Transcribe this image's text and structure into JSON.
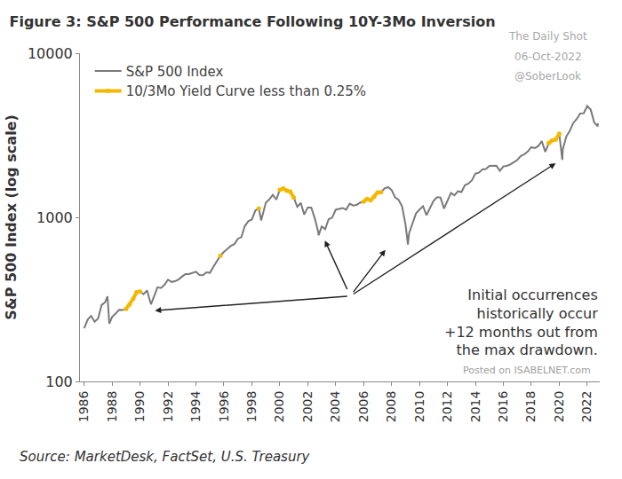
{
  "chart_data": {
    "type": "line",
    "title": "Figure 3: S&P 500 Performance Following 10Y-3Mo Inversion",
    "y_label": "S&P 500 Index (log scale)",
    "log": "y",
    "grid": false,
    "legend": "top left",
    "xlim": [
      1985.7,
      2022.9
    ],
    "xticks": [
      1986,
      1988,
      1990,
      1992,
      1994,
      1996,
      1998,
      2000,
      2002,
      2004,
      2006,
      2008,
      2010,
      2012,
      2014,
      2016,
      2018,
      2020,
      2022
    ],
    "ylim": [
      100,
      10000
    ],
    "yticks": [
      100,
      1000,
      10000
    ],
    "x": [
      1986,
      1986.25,
      1986.5,
      1986.75,
      1987,
      1987.25,
      1987.5,
      1987.67,
      1987.8,
      1988,
      1988.25,
      1988.5,
      1988.75,
      1989,
      1989.25,
      1989.5,
      1989.75,
      1990,
      1990.25,
      1990.5,
      1990.78,
      1991,
      1991.25,
      1991.5,
      1991.75,
      1992,
      1992.25,
      1992.5,
      1992.75,
      1993,
      1993.25,
      1993.5,
      1993.75,
      1994,
      1994.25,
      1994.5,
      1994.75,
      1995,
      1995.25,
      1995.5,
      1995.75,
      1996,
      1996.25,
      1996.5,
      1996.75,
      1997,
      1997.25,
      1997.5,
      1997.75,
      1998,
      1998.25,
      1998.5,
      1998.67,
      1998.75,
      1999,
      1999.25,
      1999.5,
      1999.75,
      2000,
      2000.25,
      2000.5,
      2000.75,
      2001,
      2001.25,
      2001.5,
      2001.75,
      2002,
      2002.25,
      2002.5,
      2002.75,
      2002.78,
      2003,
      2003.25,
      2003.5,
      2003.75,
      2004,
      2004.25,
      2004.5,
      2004.75,
      2005,
      2005.25,
      2005.5,
      2005.75,
      2006,
      2006.25,
      2006.5,
      2006.75,
      2007,
      2007.25,
      2007.5,
      2007.75,
      2008,
      2008.25,
      2008.5,
      2008.75,
      2009,
      2009.17,
      2009.25,
      2009.5,
      2009.75,
      2010,
      2010.25,
      2010.5,
      2010.75,
      2011,
      2011.25,
      2011.5,
      2011.75,
      2012,
      2012.25,
      2012.5,
      2012.75,
      2013,
      2013.25,
      2013.5,
      2013.75,
      2014,
      2014.25,
      2014.5,
      2014.75,
      2015,
      2015.25,
      2015.5,
      2015.75,
      2016,
      2016.25,
      2016.5,
      2016.75,
      2017,
      2017.25,
      2017.5,
      2017.75,
      2018,
      2018.25,
      2018.5,
      2018.75,
      2019,
      2019.25,
      2019.5,
      2019.75,
      2020,
      2020.22,
      2020.25,
      2020.5,
      2020.75,
      2021,
      2021.25,
      2021.5,
      2021.75,
      2022,
      2022.25,
      2022.5,
      2022.75,
      2022.76
    ],
    "series": [
      {
        "name": "S&P 500 Index",
        "color": "#7a7a7a",
        "line_style": "solid",
        "values": [
          211,
          238,
          251,
          231,
          242,
          292,
          304,
          330,
          225,
          247,
          259,
          273,
          272,
          277,
          294,
          318,
          349,
          353,
          340,
          358,
          295,
          330,
          375,
          371,
          388,
          417,
          404,
          408,
          418,
          435,
          451,
          451,
          459,
          466,
          445,
          444,
          462,
          459,
          500,
          545,
          584,
          615,
          645,
          670,
          687,
          740,
          757,
          885,
          947,
          970,
          1101,
          1133,
          957,
          1017,
          1229,
          1286,
          1372,
          1282,
          1469,
          1498,
          1454,
          1436,
          1320,
          1160,
          1224,
          1040,
          1148,
          1147,
          989,
          815,
          777,
          880,
          848,
          975,
          996,
          1112,
          1126,
          1140,
          1114,
          1212,
          1180,
          1191,
          1228,
          1248,
          1295,
          1270,
          1336,
          1418,
          1421,
          1503,
          1527,
          1468,
          1323,
          1280,
          1166,
          903,
          683,
          798,
          919,
          1057,
          1115,
          1169,
          1031,
          1141,
          1258,
          1326,
          1321,
          1131,
          1258,
          1408,
          1362,
          1441,
          1426,
          1569,
          1606,
          1682,
          1848,
          1872,
          1960,
          1972,
          2059,
          2068,
          2063,
          1920,
          2044,
          2060,
          2099,
          2168,
          2239,
          2363,
          2423,
          2519,
          2674,
          2641,
          2718,
          2914,
          2507,
          2834,
          2942,
          2977,
          3231,
          2237,
          2585,
          3100,
          3363,
          3756,
          3973,
          4298,
          4308,
          4766,
          4530,
          3785,
          3586,
          3745
        ]
      },
      {
        "name": "10/3Mo Yield Curve less than 0.25%",
        "color": "#f5b800",
        "marker": "circle",
        "line_style": "solid",
        "values": [
          null,
          null,
          null,
          null,
          null,
          null,
          null,
          null,
          null,
          null,
          null,
          null,
          null,
          277,
          294,
          318,
          349,
          353,
          null,
          null,
          null,
          null,
          null,
          null,
          null,
          null,
          null,
          null,
          null,
          null,
          null,
          null,
          null,
          null,
          null,
          null,
          null,
          null,
          null,
          null,
          584,
          null,
          null,
          null,
          null,
          null,
          null,
          null,
          null,
          null,
          null,
          1133,
          null,
          null,
          null,
          null,
          null,
          null,
          1469,
          1498,
          1454,
          1436,
          1320,
          null,
          null,
          null,
          null,
          null,
          null,
          null,
          null,
          null,
          null,
          null,
          null,
          null,
          null,
          null,
          null,
          null,
          null,
          null,
          null,
          1248,
          1295,
          1270,
          1336,
          1418,
          1421,
          null,
          null,
          null,
          null,
          null,
          null,
          null,
          null,
          null,
          null,
          null,
          null,
          null,
          null,
          null,
          null,
          null,
          null,
          null,
          null,
          null,
          null,
          null,
          null,
          null,
          null,
          null,
          null,
          null,
          null,
          null,
          null,
          null,
          null,
          null,
          null,
          null,
          null,
          null,
          null,
          null,
          null,
          null,
          null,
          null,
          null,
          null,
          null,
          2834,
          2942,
          2977,
          3231,
          null,
          null,
          null,
          null,
          null,
          null,
          null,
          null,
          null,
          null,
          null,
          null,
          null
        ]
      }
    ],
    "drawdowns": [
      {
        "x": [
          1990.0,
          1991.0
        ],
        "y": [
          270,
          390
        ]
      },
      {
        "x": [
          2001.0,
          2003.2
        ],
        "y": [
          730,
          1250
        ]
      },
      {
        "x": [
          2007.6,
          2009.4
        ],
        "y": [
          640,
          1600
        ]
      },
      {
        "x": [
          2019.8,
          2020.6
        ],
        "y": [
          2150,
          3450
        ]
      }
    ],
    "note": "Initial occurrences\nhistorically occur\n+12 months out from\nthe max drawdown.",
    "watermarks_top": [
      "The Daily Shot",
      "06-Oct-2022",
      "@SoberLook"
    ],
    "watermark_bottom": "Posted on ISABELNET.com",
    "source": "Source: MarketDesk, FactSet, U.S. Treasury"
  }
}
